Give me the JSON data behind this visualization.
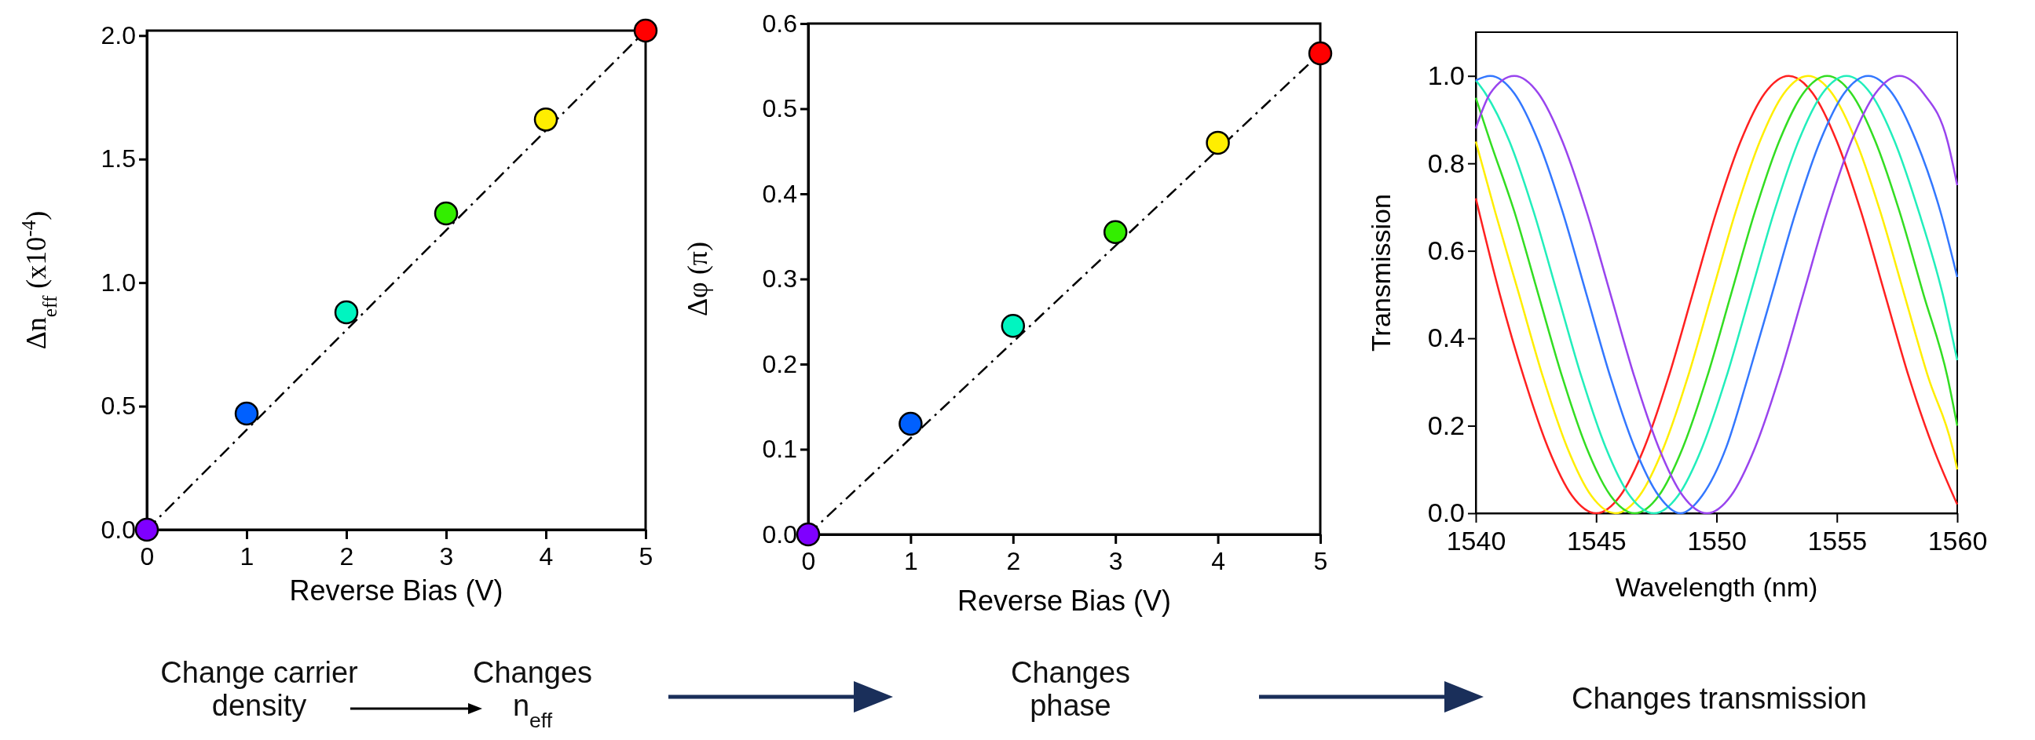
{
  "chart_data": [
    {
      "type": "scatter",
      "xlabel": "Reverse Bias (V)",
      "ylabel": "Δn$_{eff}$ (x10$^{-4}$)",
      "x": [
        0,
        1,
        2,
        3,
        4,
        5
      ],
      "xlim": [
        0,
        5
      ],
      "xticks": [
        0,
        1,
        2,
        3,
        4,
        5
      ],
      "ylim": [
        0,
        2.02
      ],
      "yticks": [
        {
          "value": 0,
          "label": "0.0"
        },
        0.5,
        {
          "value": 1,
          "label": "1.0"
        },
        1.5,
        {
          "value": 2,
          "label": "2.0"
        }
      ],
      "series": [
        {
          "type": "line",
          "x": [
            0,
            5
          ],
          "color": "#000000",
          "line_style": "dashed",
          "values": [
            0,
            2.02
          ]
        },
        {
          "type": "scatter",
          "marker": "circle",
          "colors": [
            "#7f00ff",
            "#0060ff",
            "#00f5c0",
            "#33ee00",
            "#ffee00",
            "#ff0000"
          ],
          "values": [
            0,
            0.47,
            0.88,
            1.28,
            1.66,
            2.02
          ]
        }
      ]
    },
    {
      "type": "scatter",
      "xlabel": "Reverse Bias (V)",
      "ylabel": "Δφ (π)",
      "x": [
        0,
        1,
        2,
        3,
        4,
        5
      ],
      "xlim": [
        0,
        5
      ],
      "xticks": [
        0,
        1,
        2,
        3,
        4,
        5
      ],
      "ylim": [
        0,
        0.6
      ],
      "yticks": [
        {
          "value": 0,
          "label": "0.0"
        },
        0.1,
        0.2,
        0.3,
        0.4,
        0.5,
        0.6
      ],
      "series": [
        {
          "type": "line",
          "x": [
            0,
            5
          ],
          "color": "#000000",
          "line_style": "dashed",
          "values": [
            0,
            0.565
          ]
        },
        {
          "type": "scatter",
          "marker": "circle",
          "colors": [
            "#7f00ff",
            "#0060ff",
            "#00f5c0",
            "#33ee00",
            "#ffee00",
            "#ff0000"
          ],
          "values": [
            0,
            0.13,
            0.245,
            0.355,
            0.46,
            0.565
          ]
        }
      ]
    },
    {
      "type": "line",
      "xlabel": "Wavelength (nm)",
      "ylabel": "Transmission",
      "xlim": [
        1540,
        1560
      ],
      "xticks": [
        1540,
        1545,
        1550,
        1555,
        1560
      ],
      "ylim": [
        0,
        1.1
      ],
      "yticks": [
        {
          "value": 0,
          "label": "0.0"
        },
        0.2,
        0.4,
        0.6,
        0.8,
        {
          "value": 1,
          "label": "1.0"
        }
      ],
      "series": [
        {
          "color": "#ff2020",
          "x": [
            1540,
            1541,
            1542,
            1543,
            1544,
            1545,
            1546,
            1547,
            1548,
            1549,
            1550,
            1551,
            1552,
            1553,
            1554,
            1555,
            1556,
            1557,
            1558,
            1559,
            1560
          ],
          "values": [
            0.72,
            0.5,
            0.31,
            0.15,
            0.04,
            0,
            0.04,
            0.15,
            0.31,
            0.5,
            0.69,
            0.85,
            0.96,
            1,
            0.96,
            0.85,
            0.69,
            0.5,
            0.31,
            0.15,
            0.02
          ]
        },
        {
          "color": "#ffee00",
          "x": [
            1540,
            1540.8,
            1541.8,
            1542.8,
            1543.8,
            1544.8,
            1545.8,
            1546.8,
            1547.8,
            1548.8,
            1549.8,
            1550.8,
            1551.8,
            1552.8,
            1553.8,
            1554.8,
            1555.8,
            1556.8,
            1557.8,
            1558.8,
            1559.8,
            1560
          ],
          "values": [
            0.85,
            0.69,
            0.5,
            0.31,
            0.15,
            0.04,
            0,
            0.04,
            0.15,
            0.31,
            0.5,
            0.69,
            0.85,
            0.96,
            1,
            0.96,
            0.85,
            0.69,
            0.5,
            0.31,
            0.15,
            0.1
          ]
        },
        {
          "color": "#33dd22",
          "x": [
            1540,
            1540.6,
            1541.6,
            1542.6,
            1543.6,
            1544.6,
            1545.6,
            1546.6,
            1547.6,
            1548.6,
            1549.6,
            1550.6,
            1551.6,
            1552.6,
            1553.6,
            1554.6,
            1555.6,
            1556.6,
            1557.6,
            1558.6,
            1559.6,
            1560
          ],
          "values": [
            0.95,
            0.85,
            0.69,
            0.5,
            0.31,
            0.15,
            0.04,
            0,
            0.04,
            0.15,
            0.31,
            0.5,
            0.69,
            0.85,
            0.96,
            1,
            0.96,
            0.85,
            0.69,
            0.5,
            0.31,
            0.2
          ]
        },
        {
          "color": "#22eebb",
          "x": [
            1540,
            1540.4,
            1541.4,
            1542.4,
            1543.4,
            1544.4,
            1545.4,
            1546.4,
            1547.4,
            1548.4,
            1549.4,
            1550.4,
            1551.4,
            1552.4,
            1553.4,
            1554.4,
            1555.4,
            1556.4,
            1557.4,
            1558.4,
            1559.4,
            1560
          ],
          "values": [
            0.99,
            0.96,
            0.85,
            0.69,
            0.5,
            0.31,
            0.15,
            0.04,
            0,
            0.04,
            0.15,
            0.31,
            0.5,
            0.69,
            0.85,
            0.96,
            1,
            0.96,
            0.85,
            0.69,
            0.5,
            0.35
          ]
        },
        {
          "color": "#3377ff",
          "x": [
            1540,
            1540.6,
            1541.6,
            1542.6,
            1543.6,
            1544.6,
            1545.6,
            1546.6,
            1547.6,
            1548.5,
            1549.4,
            1550.4,
            1551.3,
            1552.3,
            1553.3,
            1554.3,
            1555.3,
            1556.3,
            1557.3,
            1558.3,
            1559.3,
            1560
          ],
          "values": [
            0.99,
            1,
            0.96,
            0.85,
            0.69,
            0.5,
            0.31,
            0.15,
            0.04,
            0,
            0.04,
            0.15,
            0.31,
            0.5,
            0.69,
            0.85,
            0.96,
            1,
            0.96,
            0.85,
            0.69,
            0.54
          ]
        },
        {
          "color": "#9944ee",
          "x": [
            1540,
            1540.6,
            1541.6,
            1542.6,
            1543.6,
            1544.6,
            1545.6,
            1546.6,
            1547.6,
            1548.6,
            1549.6,
            1550.6,
            1551.6,
            1552.6,
            1553.6,
            1554.6,
            1555.6,
            1556.6,
            1557.6,
            1558.6,
            1559.6,
            1560
          ],
          "values": [
            0.88,
            0.96,
            1,
            0.96,
            0.85,
            0.69,
            0.5,
            0.31,
            0.15,
            0.04,
            0,
            0.04,
            0.15,
            0.31,
            0.5,
            0.69,
            0.85,
            0.96,
            1,
            0.96,
            0.85,
            0.75
          ]
        }
      ]
    },
    {
      "type": "other",
      "annotations": [
        "Change carrier density",
        "Changes n$_{eff}$",
        "Changes phase",
        "Changes transmission"
      ]
    }
  ]
}
